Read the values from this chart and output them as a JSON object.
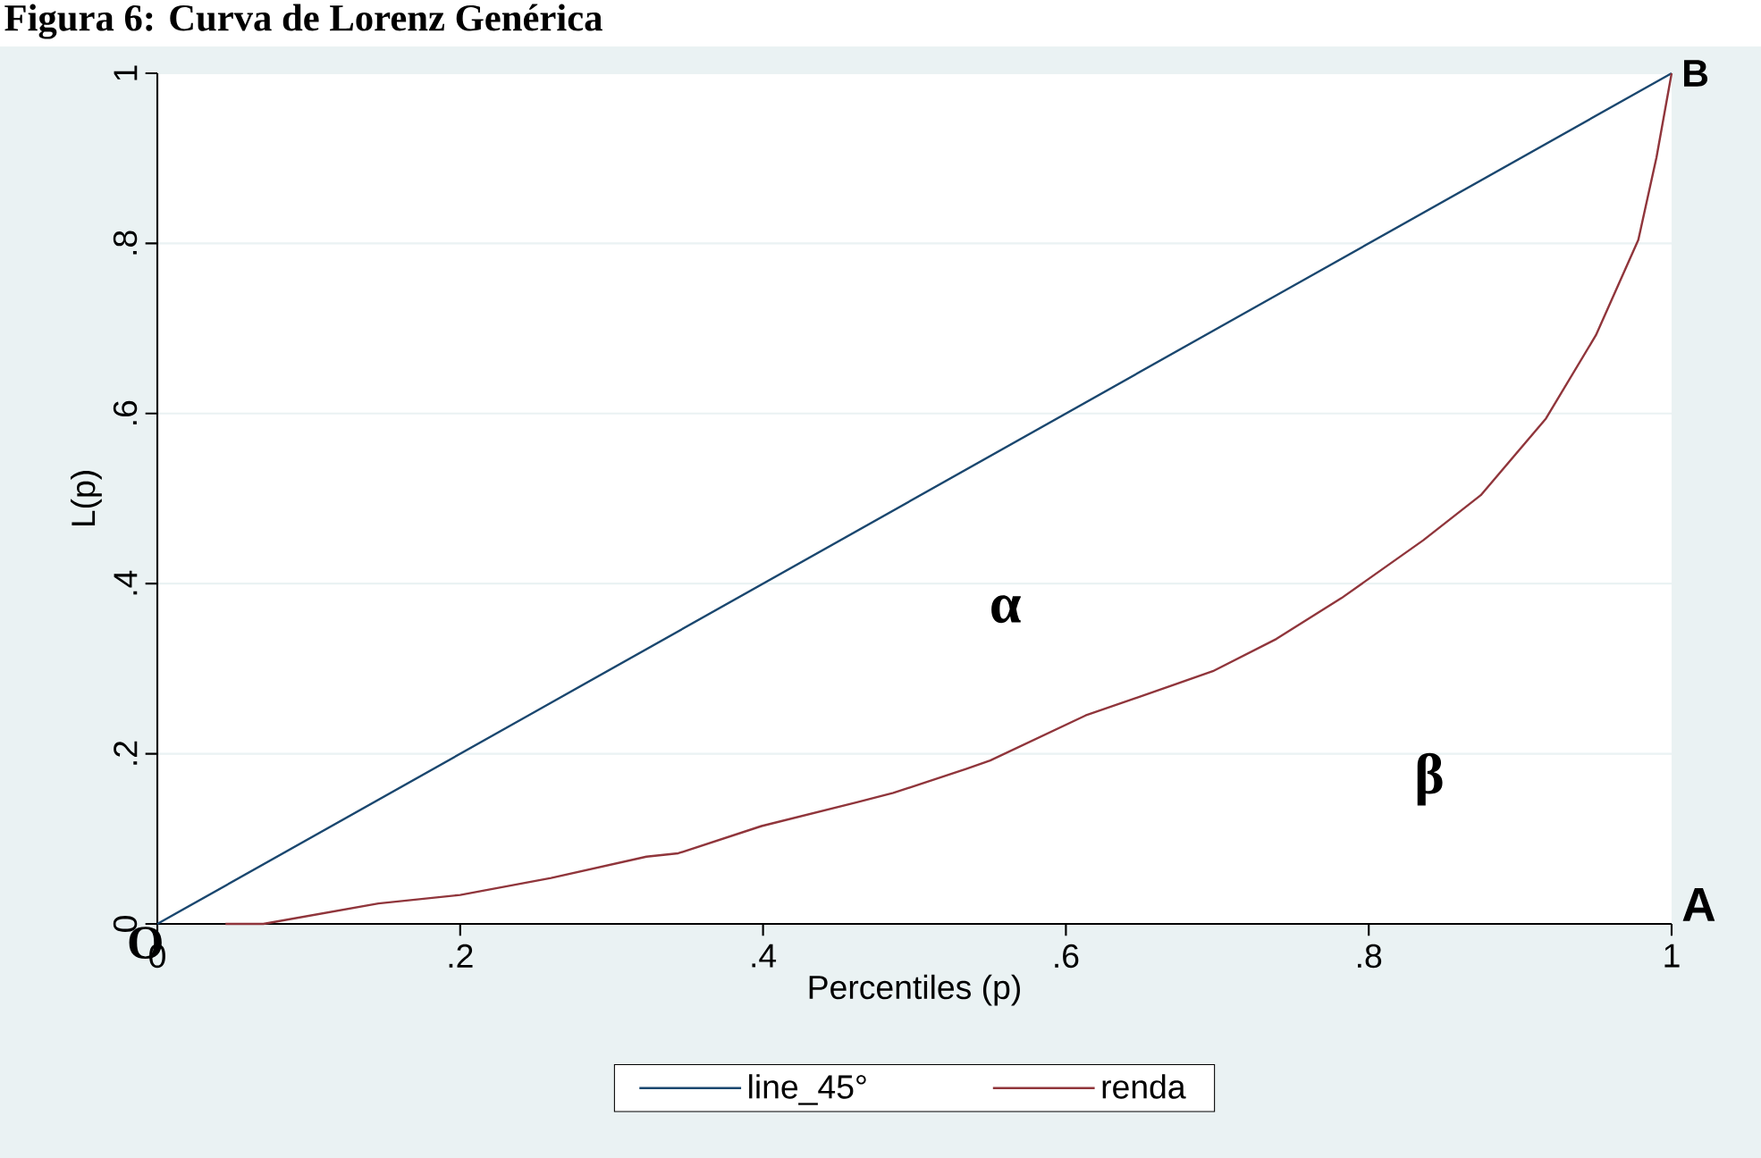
{
  "chart_data": {
    "type": "line",
    "title": "Figura 6: Curva de Lorenz Genérica",
    "xlabel": "Percentiles (p)",
    "ylabel": "L(p)",
    "xlim": [
      0,
      1
    ],
    "ylim": [
      0,
      1
    ],
    "xticks": [
      0,
      {
        "value": 0.2,
        "label": ".2"
      },
      {
        "value": 0.4,
        "label": ".4"
      },
      {
        "value": 0.6,
        "label": ".6"
      },
      {
        "value": 0.8,
        "label": ".8"
      },
      1
    ],
    "yticks": [
      0,
      {
        "value": 0.2,
        "label": ".2"
      },
      {
        "value": 0.4,
        "label": ".4"
      },
      {
        "value": 0.6,
        "label": ".6"
      },
      {
        "value": 0.8,
        "label": ".8"
      },
      1
    ],
    "grid": "y",
    "legend": "bottom",
    "series": [
      {
        "name": "line_45°",
        "color": "#1a476f",
        "x": [
          0,
          0.25,
          0.5,
          0.75,
          1
        ],
        "values": [
          0,
          0.25,
          0.5,
          0.75,
          1
        ]
      },
      {
        "name": "renda",
        "color": "#90353b",
        "x": [
          0.045,
          0.07,
          0.146,
          0.2,
          0.26,
          0.323,
          0.344,
          0.399,
          0.462,
          0.486,
          0.534,
          0.55,
          0.613,
          0.697,
          0.739,
          0.782,
          0.836,
          0.874,
          0.917,
          0.95,
          0.978,
          0.99,
          1
        ],
        "values": [
          0,
          0,
          0.024,
          0.034,
          0.054,
          0.079,
          0.083,
          0.115,
          0.143,
          0.154,
          0.182,
          0.192,
          0.245,
          0.297,
          0.335,
          0.383,
          0.451,
          0.504,
          0.594,
          0.692,
          0.804,
          0.901,
          1
        ]
      }
    ],
    "annotations": [
      {
        "text": "O",
        "x": 0,
        "y": 0
      },
      "A",
      {
        "text": "B",
        "x": 1,
        "y": 1
      },
      "α",
      "β"
    ]
  }
}
